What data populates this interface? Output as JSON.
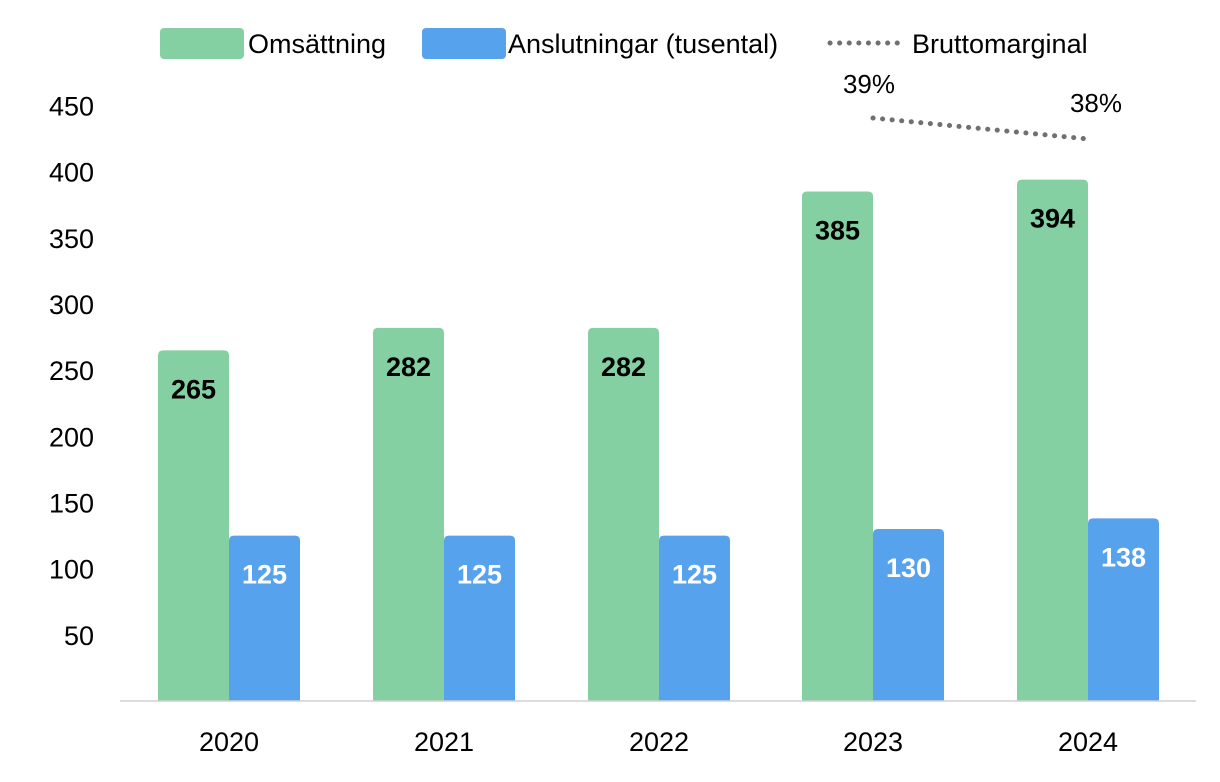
{
  "chart_data": {
    "type": "bar",
    "categories": [
      "2020",
      "2021",
      "2022",
      "2023",
      "2024"
    ],
    "series": [
      {
        "name": "Omsättning",
        "values": [
          265,
          282,
          282,
          385,
          394
        ],
        "color": "#84d0a2",
        "label_color": "#000000"
      },
      {
        "name": "Anslutningar (tusental)",
        "values": [
          125,
          125,
          125,
          130,
          138
        ],
        "color": "#56a2ec",
        "label_color": "#ffffff"
      }
    ],
    "line_series": {
      "name": "Bruttomarginal",
      "type": "line",
      "style": "dotted",
      "color": "#707070",
      "points": [
        {
          "category": "2023",
          "value": 39,
          "label": "39%"
        },
        {
          "category": "2024",
          "value": 38,
          "label": "38%"
        }
      ]
    },
    "ylim": [
      0,
      450
    ],
    "yticks": [
      "50",
      "100",
      "150",
      "200",
      "250",
      "300",
      "350",
      "400",
      "450"
    ],
    "grid": false,
    "legend_position": "top"
  }
}
